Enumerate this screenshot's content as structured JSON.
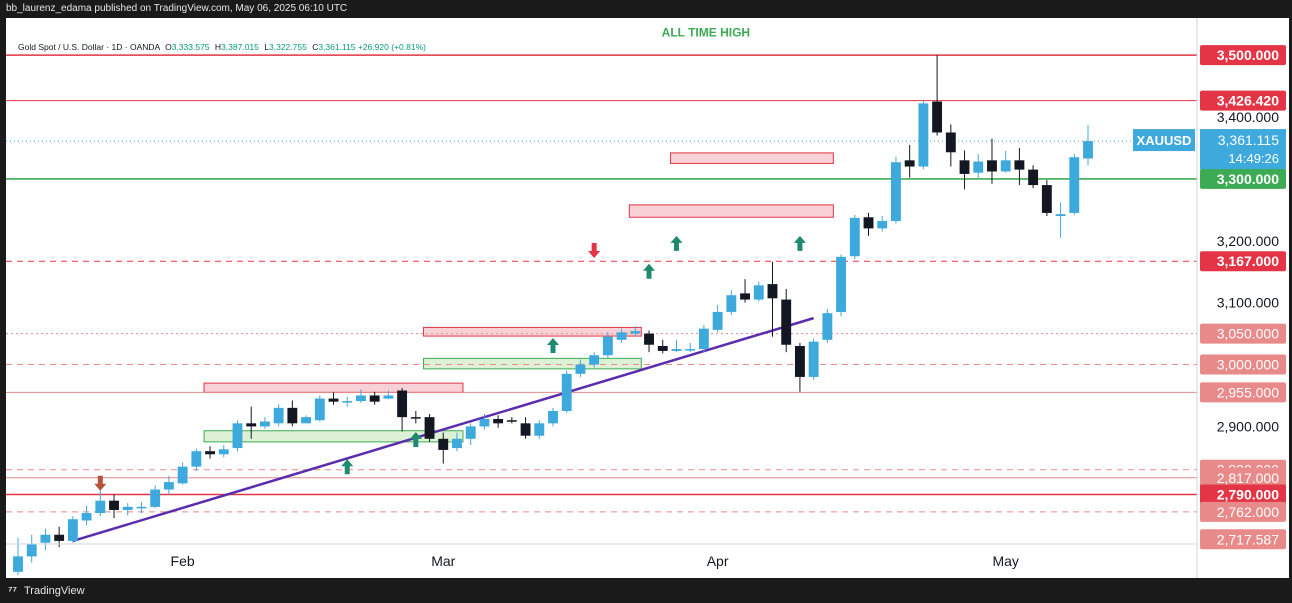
{
  "header": {
    "publisher": "bb_laurenz_edama published on TradingView.com, May 06, 2025 06:10 UTC"
  },
  "legend": {
    "symbol": "Gold Spot / U.S. Dollar · 1D · OANDA",
    "open_label": "O",
    "open": "3,333.575",
    "high_label": "H",
    "high": "3,387.015",
    "low_label": "L",
    "low": "3,322.755",
    "close_label": "C",
    "close": "3,361.115",
    "change": "+26.920 (+0.81%)"
  },
  "footer": {
    "brand": "TradingView",
    "logo": "tradingview-logo-icon"
  },
  "colors": {
    "up": "#3da9dc",
    "down": "#131722",
    "resistance": "#e33545",
    "support": "#3dab54",
    "trendline": "#5b2dad",
    "zone_red": "#f5c6cb",
    "zone_green": "#d4edc9",
    "arrow_up": "#1e8a70",
    "arrow_red": "#e33545",
    "arrow_brown": "#b5523b"
  },
  "chart_data": {
    "type": "candlestick",
    "symbol": "XAUUSD",
    "timeframe": "1D",
    "ylim": [
      2710,
      3560
    ],
    "x_tick_labels": [
      "Feb",
      "Mar",
      "Apr",
      "May"
    ],
    "y_tick_labels": [
      "3,400.000",
      "3,200.000",
      "3,100.000",
      "2,900.000"
    ],
    "price_label": {
      "symbol": "XAUUSD",
      "price": "3,361.115",
      "countdown": "14:49:26",
      "value": 3361.115
    },
    "horizontal_levels": [
      {
        "value": 3500,
        "label": "3,500.000",
        "style": "solid",
        "color": "#e33545"
      },
      {
        "value": 3426.42,
        "label": "3,426.420",
        "style": "solid-thin",
        "color": "#e33545"
      },
      {
        "value": 3300,
        "label": "3,300.000",
        "style": "solid",
        "color": "#3dab54"
      },
      {
        "value": 3167,
        "label": "3,167.000",
        "style": "dashed",
        "color": "#e33545"
      },
      {
        "value": 3050,
        "label": "3,050.000",
        "style": "dotted",
        "color": "#e88a8a"
      },
      {
        "value": 3000,
        "label": "3,000.000",
        "style": "dashed",
        "color": "#e88a8a"
      },
      {
        "value": 2955,
        "label": "2,955.000",
        "style": "solid-thin",
        "color": "#e88a8a"
      },
      {
        "value": 2830,
        "label": "2,830.000",
        "style": "dashed",
        "color": "#e88a8a"
      },
      {
        "value": 2817,
        "label": "2,817.000",
        "style": "solid-thin",
        "color": "#e88a8a"
      },
      {
        "value": 2790,
        "label": "2,790.000",
        "style": "solid",
        "color": "#e33545"
      },
      {
        "value": 2762,
        "label": "2,762.000",
        "style": "dashed",
        "color": "#e88a8a"
      },
      {
        "value": 2717.587,
        "label": "2,717.587",
        "style": "none",
        "color": "#e88a8a"
      }
    ],
    "annotations": [
      {
        "text": "ALL TIME HIGH",
        "date_index": 50,
        "value": 3530
      }
    ],
    "zones": [
      {
        "type": "resistance",
        "start": 14,
        "end": 32,
        "low": 2955,
        "high": 2970
      },
      {
        "type": "support",
        "start": 14,
        "end": 32,
        "low": 2875,
        "high": 2893
      },
      {
        "type": "resistance",
        "start": 30,
        "end": 45,
        "low": 3046,
        "high": 3060
      },
      {
        "type": "support",
        "start": 30,
        "end": 45,
        "low": 2993,
        "high": 3010
      },
      {
        "type": "resistance",
        "start": 48,
        "end": 59,
        "low": 3325,
        "high": 3342
      },
      {
        "type": "resistance",
        "start": 45,
        "end": 59,
        "low": 3238,
        "high": 3258
      }
    ],
    "trendline": {
      "start": [
        4,
        2715
      ],
      "end": [
        58,
        3075
      ]
    },
    "arrows": [
      {
        "index": 6,
        "value": 2809,
        "dir": "down",
        "color": "brown"
      },
      {
        "index": 24,
        "value": 2834,
        "dir": "up",
        "color": "green"
      },
      {
        "index": 29,
        "value": 2878,
        "dir": "up",
        "color": "green"
      },
      {
        "index": 39,
        "value": 3030,
        "dir": "up",
        "color": "green"
      },
      {
        "index": 42,
        "value": 3185,
        "dir": "down",
        "color": "red"
      },
      {
        "index": 46,
        "value": 3150,
        "dir": "up",
        "color": "green"
      },
      {
        "index": 48,
        "value": 3195,
        "dir": "up",
        "color": "green"
      },
      {
        "index": 57,
        "value": 3195,
        "dir": "up",
        "color": "green"
      }
    ],
    "candles": [
      [
        2665,
        2690,
        2660,
        2720
      ],
      [
        2690,
        2710,
        2680,
        2725
      ],
      [
        2712,
        2725,
        2700,
        2735
      ],
      [
        2725,
        2715,
        2705,
        2738
      ],
      [
        2715,
        2750,
        2712,
        2755
      ],
      [
        2748,
        2760,
        2740,
        2772
      ],
      [
        2760,
        2780,
        2755,
        2815
      ],
      [
        2780,
        2765,
        2752,
        2790
      ],
      [
        2765,
        2770,
        2756,
        2776
      ],
      [
        2770,
        2770,
        2760,
        2778
      ],
      [
        2770,
        2798,
        2768,
        2805
      ],
      [
        2798,
        2810,
        2790,
        2820
      ],
      [
        2808,
        2835,
        2806,
        2842
      ],
      [
        2835,
        2860,
        2828,
        2864
      ],
      [
        2860,
        2855,
        2848,
        2868
      ],
      [
        2855,
        2863,
        2850,
        2870
      ],
      [
        2865,
        2905,
        2860,
        2910
      ],
      [
        2905,
        2900,
        2880,
        2932
      ],
      [
        2900,
        2908,
        2896,
        2915
      ],
      [
        2905,
        2930,
        2900,
        2936
      ],
      [
        2930,
        2905,
        2900,
        2942
      ],
      [
        2905,
        2915,
        2906,
        2918
      ],
      [
        2910,
        2945,
        2908,
        2950
      ],
      [
        2945,
        2940,
        2935,
        2955
      ],
      [
        2940,
        2941,
        2932,
        2948
      ],
      [
        2941,
        2950,
        2938,
        2960
      ],
      [
        2950,
        2940,
        2935,
        2956
      ],
      [
        2945,
        2950,
        2944,
        2958
      ],
      [
        2958,
        2915,
        2892,
        2962
      ],
      [
        2915,
        2913,
        2905,
        2925
      ],
      [
        2915,
        2880,
        2875,
        2920
      ],
      [
        2880,
        2862,
        2840,
        2890
      ],
      [
        2865,
        2880,
        2860,
        2890
      ],
      [
        2880,
        2900,
        2870,
        2905
      ],
      [
        2900,
        2912,
        2895,
        2920
      ],
      [
        2912,
        2905,
        2898,
        2918
      ],
      [
        2910,
        2908,
        2905,
        2915
      ],
      [
        2905,
        2885,
        2880,
        2915
      ],
      [
        2885,
        2905,
        2880,
        2910
      ],
      [
        2905,
        2925,
        2900,
        2930
      ],
      [
        2925,
        2985,
        2922,
        2990
      ],
      [
        2985,
        3000,
        2980,
        3008
      ],
      [
        3000,
        3015,
        2995,
        3020
      ],
      [
        3015,
        3045,
        3010,
        3052
      ],
      [
        3040,
        3052,
        3035,
        3058
      ],
      [
        3050,
        3054,
        3046,
        3062
      ],
      [
        3050,
        3032,
        3020,
        3055
      ],
      [
        3030,
        3022,
        3018,
        3040
      ],
      [
        3022,
        3025,
        3020,
        3040
      ],
      [
        3025,
        3025,
        3020,
        3035
      ],
      [
        3025,
        3058,
        3020,
        3064
      ],
      [
        3056,
        3085,
        3052,
        3096
      ],
      [
        3085,
        3112,
        3080,
        3120
      ],
      [
        3115,
        3105,
        3100,
        3138
      ],
      [
        3105,
        3128,
        3102,
        3134
      ],
      [
        3130,
        3107,
        3045,
        3166
      ],
      [
        3105,
        3032,
        3020,
        3122
      ],
      [
        3030,
        2980,
        2956,
        3035
      ],
      [
        2980,
        3037,
        2975,
        3042
      ],
      [
        3040,
        3083,
        3035,
        3090
      ],
      [
        3085,
        3174,
        3078,
        3178
      ],
      [
        3175,
        3237,
        3170,
        3242
      ],
      [
        3238,
        3220,
        3208,
        3245
      ],
      [
        3220,
        3232,
        3215,
        3240
      ],
      [
        3232,
        3327,
        3228,
        3336
      ],
      [
        3330,
        3320,
        3302,
        3355
      ],
      [
        3320,
        3422,
        3316,
        3427
      ],
      [
        3425,
        3375,
        3370,
        3500
      ],
      [
        3375,
        3343,
        3320,
        3388
      ],
      [
        3330,
        3308,
        3283,
        3346
      ],
      [
        3310,
        3328,
        3302,
        3340
      ],
      [
        3330,
        3312,
        3292,
        3365
      ],
      [
        3312,
        3330,
        3310,
        3345
      ],
      [
        3330,
        3315,
        3290,
        3350
      ],
      [
        3315,
        3290,
        3285,
        3322
      ],
      [
        3290,
        3245,
        3240,
        3298
      ],
      [
        3240,
        3243,
        3205,
        3262
      ],
      [
        3245,
        3335,
        3242,
        3340
      ],
      [
        3333,
        3361,
        3322,
        3387
      ]
    ]
  }
}
